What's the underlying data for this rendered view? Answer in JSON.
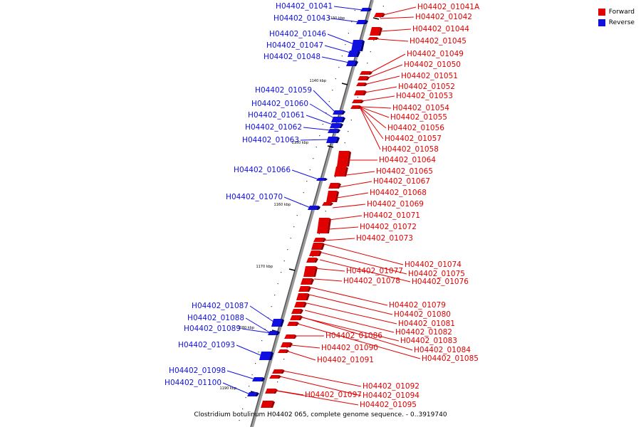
{
  "legend": {
    "forward_label": "Forward",
    "reverse_label": "Reverse",
    "forward_color": "#e00000",
    "reverse_color": "#1010e0"
  },
  "caption": "Clostridium botulinum H04402 065, complete genome sequence. - 0..3919740",
  "backbone_ticks": [
    "1130 kbp",
    "1140 kbp",
    "1150 kbp",
    "1160 kbp",
    "1170 kbp",
    "1180 kbp",
    "1190 kbp"
  ],
  "reverse_genes": [
    "H04402_01041",
    "H04402_01043",
    "H04402_01046",
    "H04402_01047",
    "H04402_01048",
    "H04402_01059",
    "H04402_01060",
    "H04402_01061",
    "H04402_01062",
    "H04402_01063",
    "H04402_01066",
    "H04402_01070",
    "H04402_01087",
    "H04402_01088",
    "H04402_01089",
    "H04402_01093",
    "H04402_01098",
    "H04402_01100"
  ],
  "forward_genes": [
    "H04402_01041A",
    "H04402_01042",
    "H04402_01044",
    "H04402_01045",
    "H04402_01049",
    "H04402_01050",
    "H04402_01051",
    "H04402_01052",
    "H04402_01053",
    "H04402_01054",
    "H04402_01055",
    "H04402_01056",
    "H04402_01057",
    "H04402_01058",
    "H04402_01064",
    "H04402_01065",
    "H04402_01067",
    "H04402_01068",
    "H04402_01069",
    "H04402_01071",
    "H04402_01072",
    "H04402_01073",
    "H04402_01074",
    "H04402_01075",
    "H04402_01076",
    "H04402_01077",
    "H04402_01078",
    "H04402_01079",
    "H04402_01080",
    "H04402_01081",
    "H04402_01082",
    "H04402_01083",
    "H04402_01084",
    "H04402_01085",
    "H04402_01086",
    "H04402_01090",
    "H04402_01091",
    "H04402_01092",
    "H04402_01094",
    "H04402_01095",
    "H04402_01097"
  ]
}
